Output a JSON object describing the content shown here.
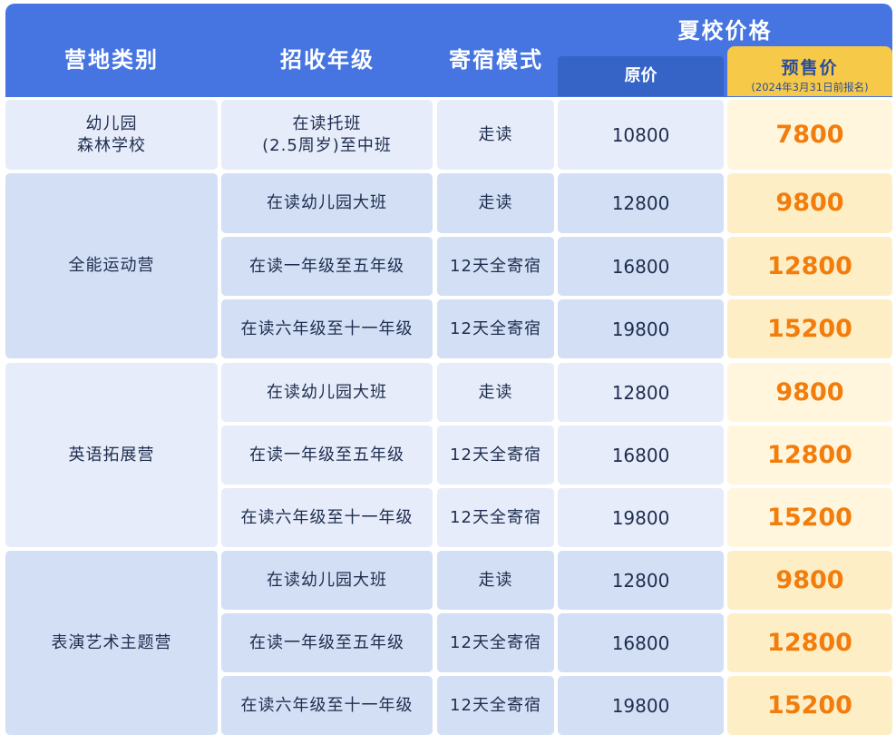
{
  "header": {
    "category": "营地类别",
    "grade": "招收年级",
    "boarding": "寄宿模式",
    "summer_price": "夏校价格",
    "original": "原价",
    "presale": "预售价",
    "presale_note": "(2024年3月31日前报名)"
  },
  "colors": {
    "header_blue": "#4675e2",
    "original_header": "#3563c6",
    "presale_header": "#f7c948",
    "sale_text": "#f27d0c"
  },
  "groups": [
    {
      "name": "幼儿园\n森林学校",
      "rows": [
        {
          "grade": "在读托班\n(2.5周岁)至中班",
          "mode": "走读",
          "original": "10800",
          "presale": "7800"
        }
      ]
    },
    {
      "name": "全能运动营",
      "rows": [
        {
          "grade": "在读幼儿园大班",
          "mode": "走读",
          "original": "12800",
          "presale": "9800"
        },
        {
          "grade": "在读一年级至五年级",
          "mode": "12天全寄宿",
          "original": "16800",
          "presale": "12800"
        },
        {
          "grade": "在读六年级至十一年级",
          "mode": "12天全寄宿",
          "original": "19800",
          "presale": "15200"
        }
      ]
    },
    {
      "name": "英语拓展营",
      "rows": [
        {
          "grade": "在读幼儿园大班",
          "mode": "走读",
          "original": "12800",
          "presale": "9800"
        },
        {
          "grade": "在读一年级至五年级",
          "mode": "12天全寄宿",
          "original": "16800",
          "presale": "12800"
        },
        {
          "grade": "在读六年级至十一年级",
          "mode": "12天全寄宿",
          "original": "19800",
          "presale": "15200"
        }
      ]
    },
    {
      "name": "表演艺术主题营",
      "rows": [
        {
          "grade": "在读幼儿园大班",
          "mode": "走读",
          "original": "12800",
          "presale": "9800"
        },
        {
          "grade": "在读一年级至五年级",
          "mode": "12天全寄宿",
          "original": "16800",
          "presale": "12800"
        },
        {
          "grade": "在读六年级至十一年级",
          "mode": "12天全寄宿",
          "original": "19800",
          "presale": "15200"
        }
      ]
    }
  ]
}
